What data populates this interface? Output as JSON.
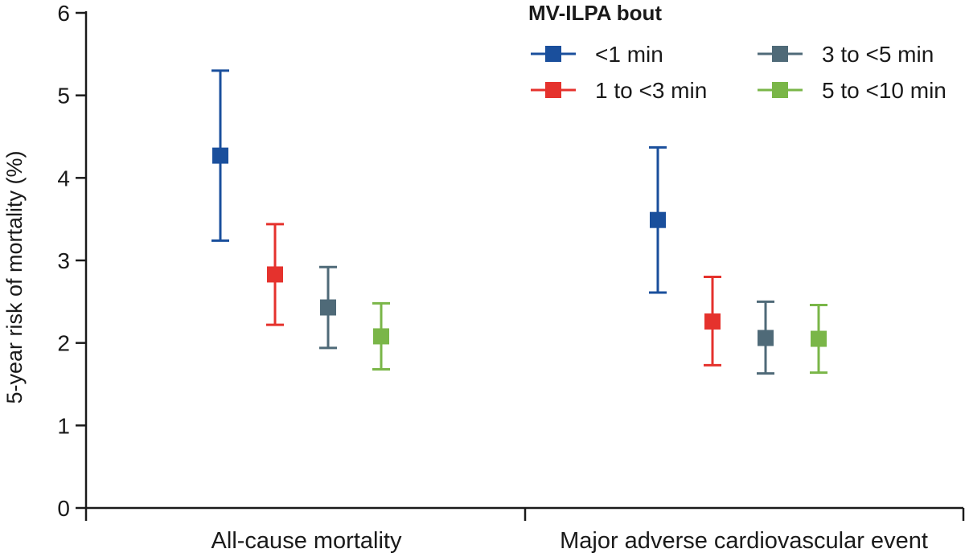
{
  "chart_data": {
    "type": "errorbar",
    "title": "",
    "ylabel": "5-year risk of mortality (%)",
    "xlabel": "",
    "ylim": [
      0,
      6
    ],
    "yticks": [
      0,
      1,
      2,
      3,
      4,
      5,
      6
    ],
    "categories": [
      "All-cause mortality",
      "Major adverse cardiovascular event"
    ],
    "legend_title": "MV-ILPA bout",
    "legend_position": "top-right",
    "series": [
      {
        "name": "<1 min",
        "color": "#1a4f9c",
        "points": [
          {
            "category": "All-cause mortality",
            "value": 4.27,
            "lower": 3.24,
            "upper": 5.3
          },
          {
            "category": "Major adverse cardiovascular event",
            "value": 3.49,
            "lower": 2.61,
            "upper": 4.37
          }
        ]
      },
      {
        "name": "1 to <3 min",
        "color": "#e5322d",
        "points": [
          {
            "category": "All-cause mortality",
            "value": 2.83,
            "lower": 2.22,
            "upper": 3.44
          },
          {
            "category": "Major adverse cardiovascular event",
            "value": 2.26,
            "lower": 1.73,
            "upper": 2.8
          }
        ]
      },
      {
        "name": "3 to <5 min",
        "color": "#4f6a78",
        "points": [
          {
            "category": "All-cause mortality",
            "value": 2.43,
            "lower": 1.94,
            "upper": 2.92
          },
          {
            "category": "Major adverse cardiovascular event",
            "value": 2.06,
            "lower": 1.63,
            "upper": 2.5
          }
        ]
      },
      {
        "name": "5 to <10 min",
        "color": "#7ab648",
        "points": [
          {
            "category": "All-cause mortality",
            "value": 2.08,
            "lower": 1.68,
            "upper": 2.48
          },
          {
            "category": "Major adverse cardiovascular event",
            "value": 2.05,
            "lower": 1.64,
            "upper": 2.46
          }
        ]
      }
    ]
  }
}
